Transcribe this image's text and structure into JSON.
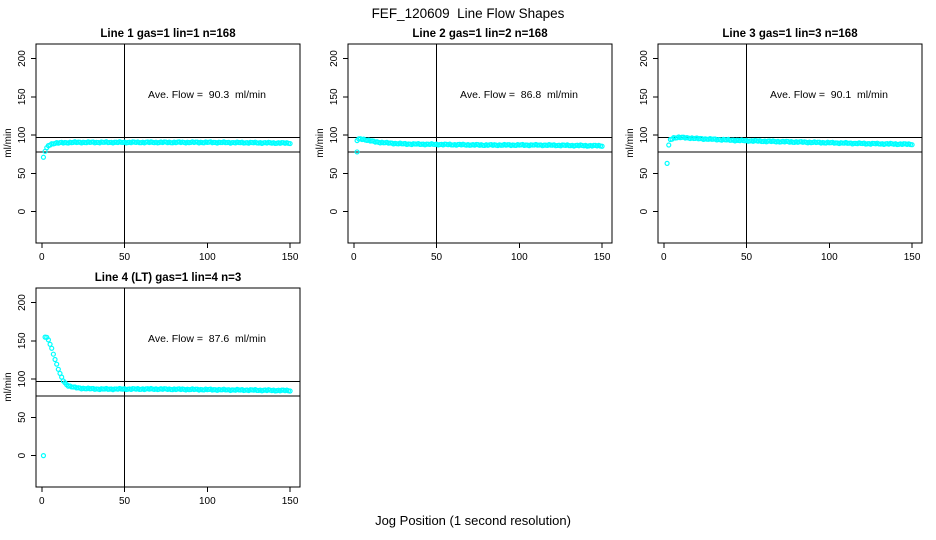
{
  "figure_title": "FEF_120609  Line Flow Shapes",
  "x_axis_label": "Jog Position (1 second resolution)",
  "marker_color": "#00FFFF",
  "axis_color": "#000000",
  "chart_data": [
    {
      "type": "scatter",
      "title": "Line 1 gas=1 lin=1 n=168",
      "annotation": "Ave. Flow =  90.3  ml/min",
      "ave_flow_ml_min": 90.3,
      "n": 168,
      "ylabel": "ml/min",
      "x_ticks": [
        0,
        50,
        100,
        150
      ],
      "y_ticks": [
        0,
        50,
        100,
        150,
        200
      ],
      "xlim": [
        -3.5,
        156
      ],
      "ylim": [
        -41,
        219
      ],
      "ref_lines_h": [
        97,
        78
      ],
      "ref_line_v": 50,
      "x_step": 1,
      "x_end": 150,
      "annotation_xy": [
        100,
        153
      ],
      "outliers": [
        [
          1,
          71
        ]
      ],
      "curve_keypoints": [
        [
          2,
          79
        ],
        [
          3,
          83
        ],
        [
          4,
          86
        ],
        [
          5,
          87.5
        ],
        [
          6,
          88.5
        ],
        [
          8,
          89.5
        ],
        [
          12,
          90
        ],
        [
          20,
          90.5
        ],
        [
          40,
          90.5
        ],
        [
          70,
          90.5
        ],
        [
          100,
          90.5
        ],
        [
          130,
          90
        ],
        [
          150,
          89.5
        ]
      ]
    },
    {
      "type": "scatter",
      "title": "Line 2 gas=1 lin=2 n=168",
      "annotation": "Ave. Flow =  86.8  ml/min",
      "ave_flow_ml_min": 86.8,
      "n": 168,
      "ylabel": "ml/min",
      "x_ticks": [
        0,
        50,
        100,
        150
      ],
      "y_ticks": [
        0,
        50,
        100,
        150,
        200
      ],
      "xlim": [
        -3.5,
        156
      ],
      "ylim": [
        -41,
        219
      ],
      "ref_lines_h": [
        97,
        78
      ],
      "ref_line_v": 50,
      "x_step": 1,
      "x_end": 150,
      "annotation_xy": [
        100,
        153
      ],
      "outliers": [
        [
          2,
          78
        ]
      ],
      "curve_keypoints": [
        [
          2,
          93
        ],
        [
          3,
          94.5
        ],
        [
          4,
          95
        ],
        [
          6,
          94.5
        ],
        [
          9,
          93
        ],
        [
          12,
          91.5
        ],
        [
          16,
          90.5
        ],
        [
          22,
          89.5
        ],
        [
          30,
          88.5
        ],
        [
          45,
          88
        ],
        [
          60,
          87.5
        ],
        [
          80,
          87
        ],
        [
          110,
          87
        ],
        [
          130,
          86.5
        ],
        [
          150,
          86
        ]
      ]
    },
    {
      "type": "scatter",
      "title": "Line 3 gas=1 lin=3 n=168",
      "annotation": "Ave. Flow =  90.1  ml/min",
      "ave_flow_ml_min": 90.1,
      "n": 168,
      "ylabel": "ml/min",
      "x_ticks": [
        0,
        50,
        100,
        150
      ],
      "y_ticks": [
        0,
        50,
        100,
        150,
        200
      ],
      "xlim": [
        -3.5,
        156
      ],
      "ylim": [
        -41,
        219
      ],
      "ref_lines_h": [
        97,
        78
      ],
      "ref_line_v": 50,
      "x_step": 1,
      "x_end": 150,
      "annotation_xy": [
        100,
        153
      ],
      "outliers": [
        [
          2,
          63
        ],
        [
          3,
          87
        ]
      ],
      "curve_keypoints": [
        [
          4,
          94
        ],
        [
          6,
          96.5
        ],
        [
          9,
          97
        ],
        [
          14,
          96.5
        ],
        [
          20,
          95.5
        ],
        [
          30,
          94.5
        ],
        [
          45,
          93
        ],
        [
          60,
          92
        ],
        [
          80,
          91
        ],
        [
          100,
          90
        ],
        [
          120,
          89
        ],
        [
          135,
          88.5
        ],
        [
          150,
          88
        ]
      ]
    },
    {
      "type": "scatter",
      "title": "Line 4 (LT) gas=1 lin=4 n=3",
      "annotation": "Ave. Flow =  87.6  ml/min",
      "ave_flow_ml_min": 87.6,
      "n": 3,
      "ylabel": "ml/min",
      "x_ticks": [
        0,
        50,
        100,
        150
      ],
      "y_ticks": [
        0,
        50,
        100,
        150,
        200
      ],
      "xlim": [
        -3.5,
        156
      ],
      "ylim": [
        -41,
        219
      ],
      "ref_lines_h": [
        97,
        78
      ],
      "ref_line_v": 50,
      "x_step": 1,
      "x_end": 150,
      "annotation_xy": [
        100,
        153
      ],
      "outliers": [
        [
          1,
          0
        ]
      ],
      "curve_keypoints": [
        [
          2,
          155
        ],
        [
          3,
          154
        ],
        [
          4,
          151
        ],
        [
          5,
          146
        ],
        [
          6,
          140
        ],
        [
          7,
          133
        ],
        [
          8,
          126
        ],
        [
          9,
          119
        ],
        [
          10,
          113
        ],
        [
          11,
          107
        ],
        [
          12,
          102
        ],
        [
          13,
          98
        ],
        [
          14,
          95
        ],
        [
          15,
          93
        ],
        [
          16,
          91.5
        ],
        [
          18,
          90
        ],
        [
          20,
          89
        ],
        [
          24,
          88
        ],
        [
          28,
          87.5
        ],
        [
          35,
          87
        ],
        [
          50,
          87
        ],
        [
          70,
          87
        ],
        [
          90,
          86.5
        ],
        [
          110,
          86
        ],
        [
          130,
          85.5
        ],
        [
          150,
          85
        ]
      ]
    }
  ]
}
